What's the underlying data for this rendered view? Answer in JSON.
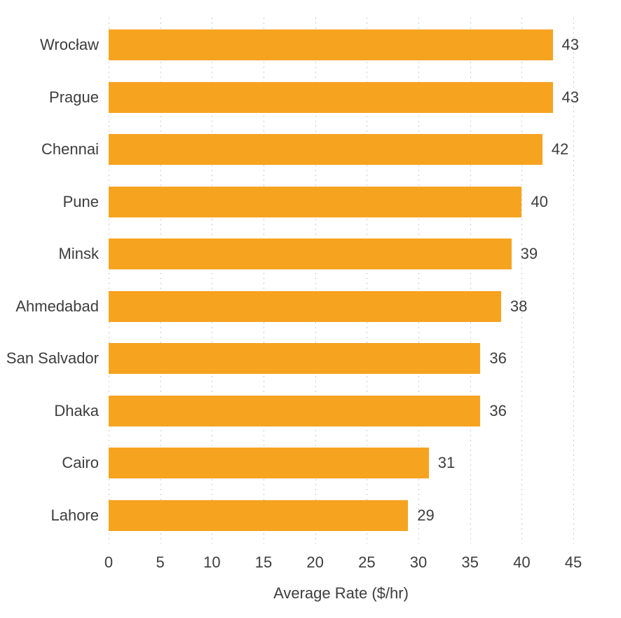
{
  "chart_data": {
    "type": "bar",
    "orientation": "horizontal",
    "title": "",
    "xlabel": "Average Rate ($/hr)",
    "ylabel": "",
    "categories": [
      "Wrocław",
      "Prague",
      "Chennai",
      "Pune",
      "Minsk",
      "Ahmedabad",
      "San Salvador",
      "Dhaka",
      "Cairo",
      "Lahore"
    ],
    "values": [
      43,
      43,
      42,
      40,
      39,
      38,
      36,
      36,
      31,
      29
    ],
    "value_labels": [
      "43",
      "43",
      "42",
      "40",
      "39",
      "38",
      "36",
      "36",
      "31",
      "29"
    ],
    "xlim": [
      0,
      45
    ],
    "xticks": [
      0,
      5,
      10,
      15,
      20,
      25,
      30,
      35,
      40,
      45
    ],
    "grid": "vertical-dotted",
    "legend_position": "none",
    "colors": {
      "bar": "#F6A320",
      "grid": "#CBCBCB",
      "text": "#3D3D3D",
      "background": "#FFFFFF"
    }
  }
}
